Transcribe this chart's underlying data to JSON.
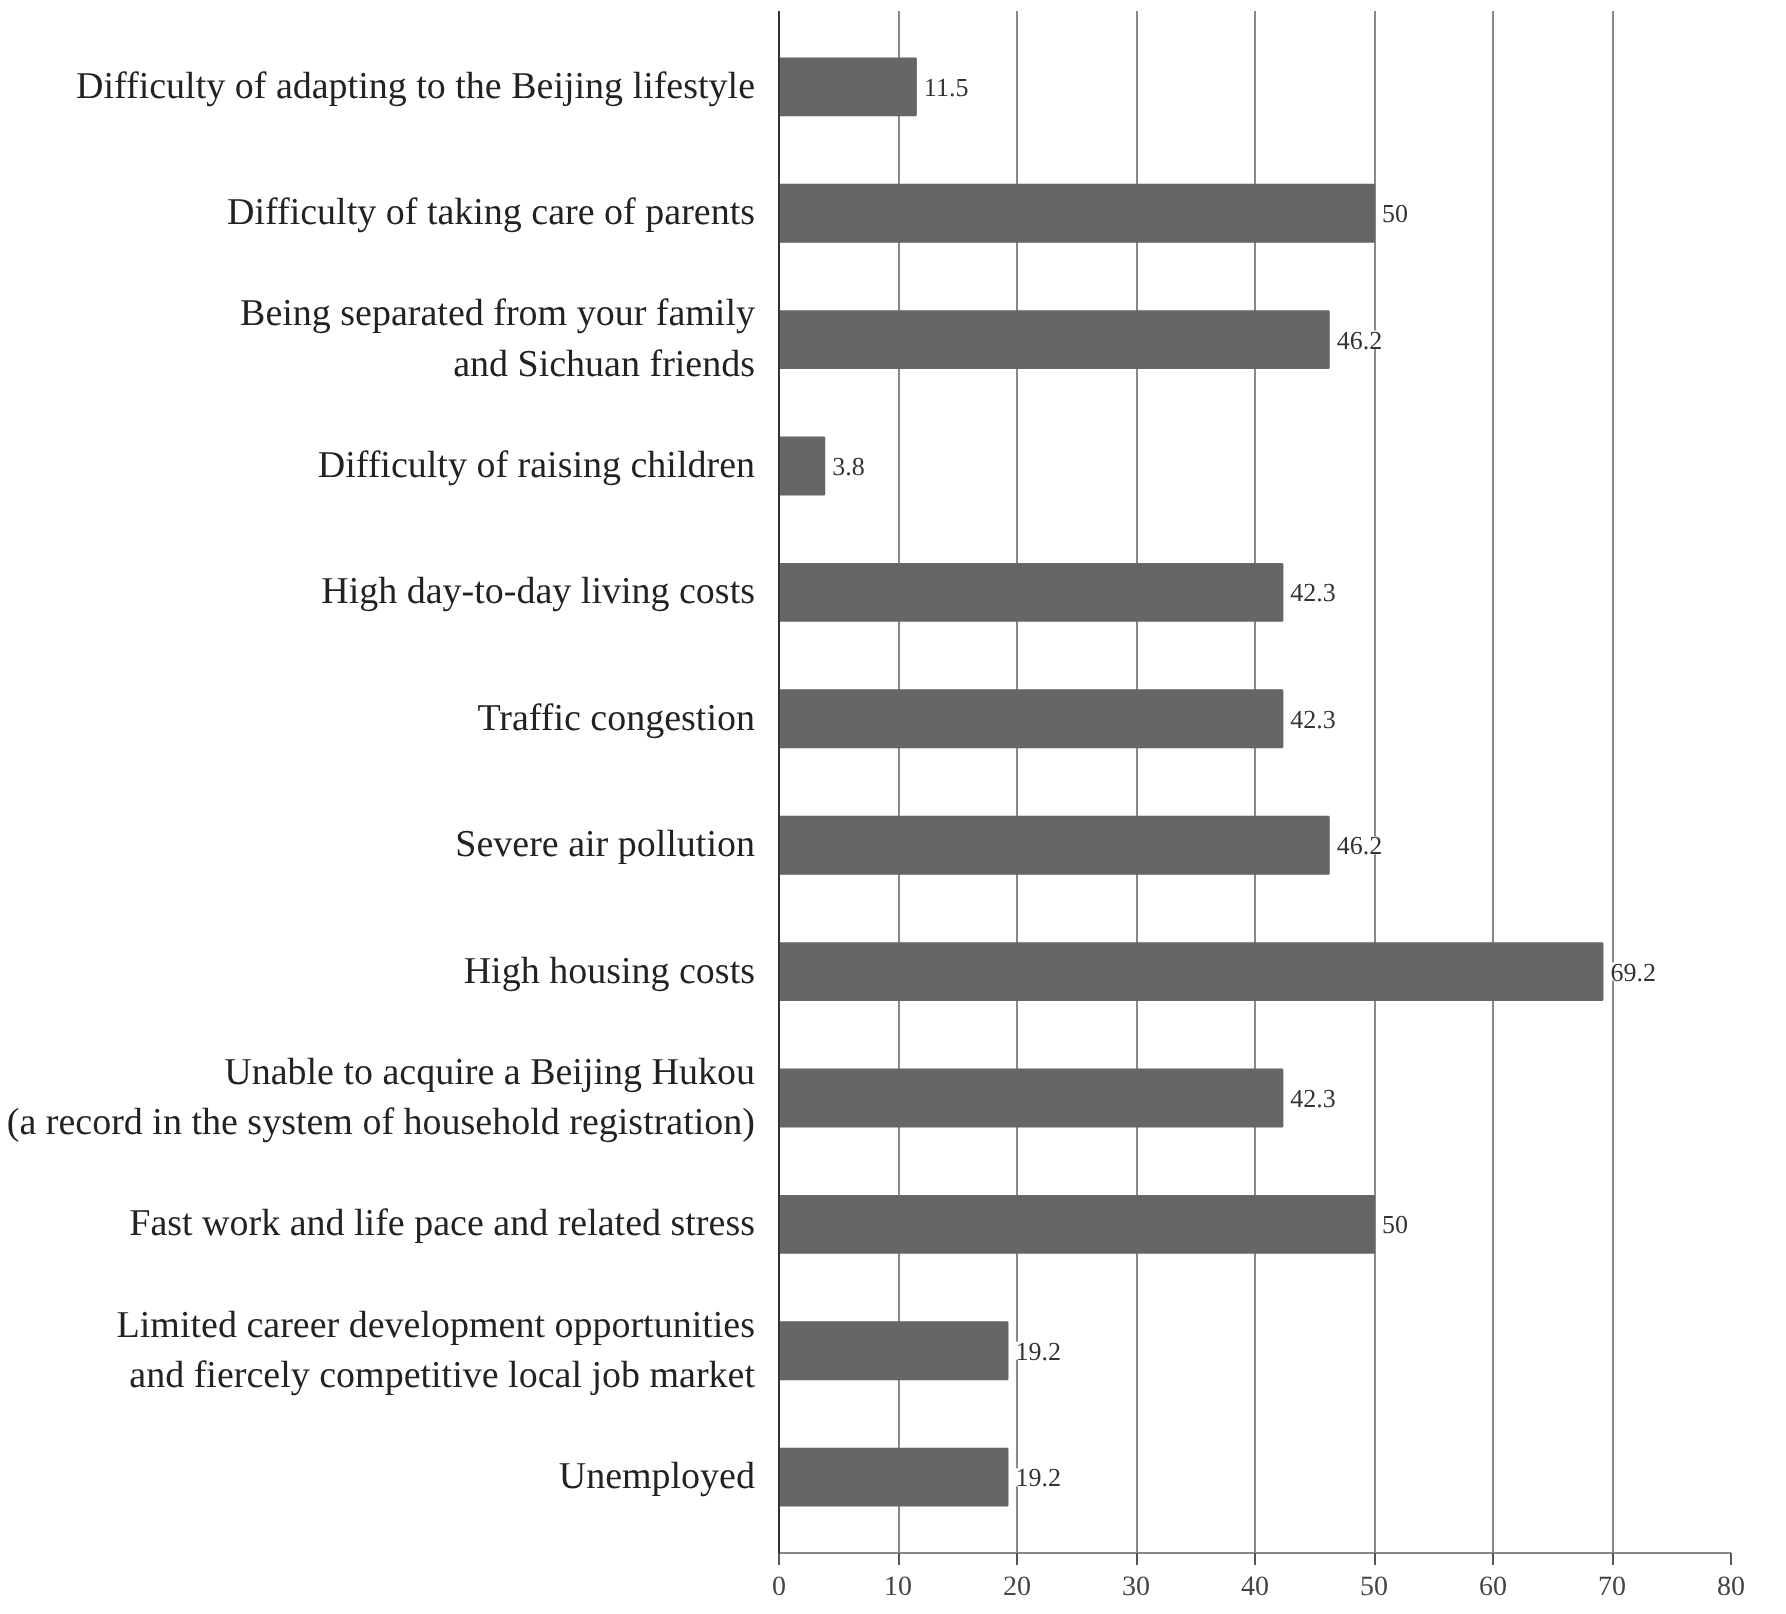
{
  "chart_data": {
    "type": "bar",
    "orientation": "horizontal",
    "categories": [
      "Difficulty of adapting to the Beijing lifestyle",
      "Difficulty of taking care of parents",
      "Being separated from your family\nand Sichuan friends",
      "Difficulty of raising children",
      "High day-to-day living costs",
      "Traffic congestion",
      "Severe air pollution",
      "High housing costs",
      "Unable to acquire a Beijing Hukou\n(a record in the system of household registration)",
      "Fast work and life pace and related stress",
      "Limited career development opportunities\nand fiercely competitive local job market",
      "Unemployed"
    ],
    "values": [
      11.5,
      50,
      46.2,
      3.8,
      42.3,
      42.3,
      46.2,
      69.2,
      42.3,
      50,
      19.2,
      19.2
    ],
    "color": "#666666",
    "xlim": [
      0,
      80
    ],
    "xticks": [
      0,
      10,
      20,
      30,
      40,
      50,
      60,
      70,
      80
    ],
    "grid": "x",
    "data_labels": true
  }
}
